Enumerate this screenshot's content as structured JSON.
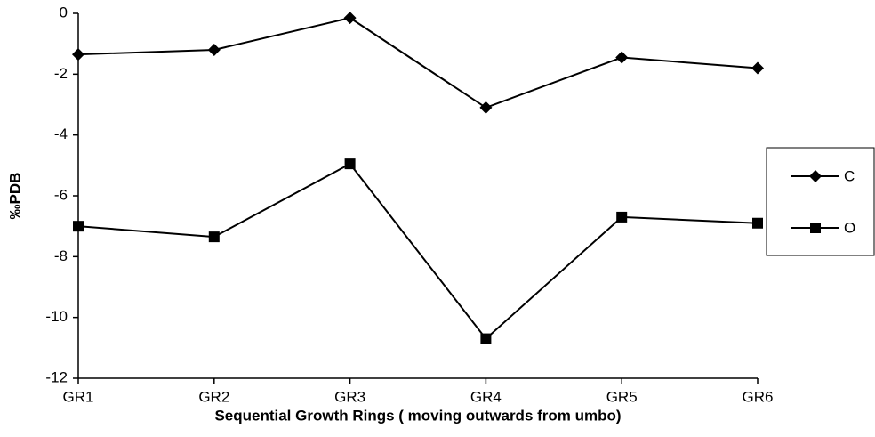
{
  "chart_data": {
    "type": "line",
    "x_label": "Sequential Growth Rings ( moving outwards from umbo)",
    "y_label": "‰PDB",
    "categories": [
      "GR1",
      "GR2",
      "GR3",
      "GR4",
      "GR5",
      "GR6"
    ],
    "series": [
      {
        "name": "C",
        "color": "#000000",
        "marker": "diamond",
        "values": [
          -1.35,
          -1.2,
          -0.15,
          -3.1,
          -1.45,
          -1.8
        ]
      },
      {
        "name": "O",
        "color": "#000000",
        "marker": "square",
        "values": [
          -7.0,
          -7.35,
          -4.95,
          -10.7,
          -6.7,
          -6.9
        ]
      }
    ],
    "ylim": [
      -12,
      0
    ],
    "yticks": [
      -12,
      -10,
      -8,
      -6,
      -4,
      -2,
      0
    ],
    "grid": false,
    "legend": "right"
  }
}
